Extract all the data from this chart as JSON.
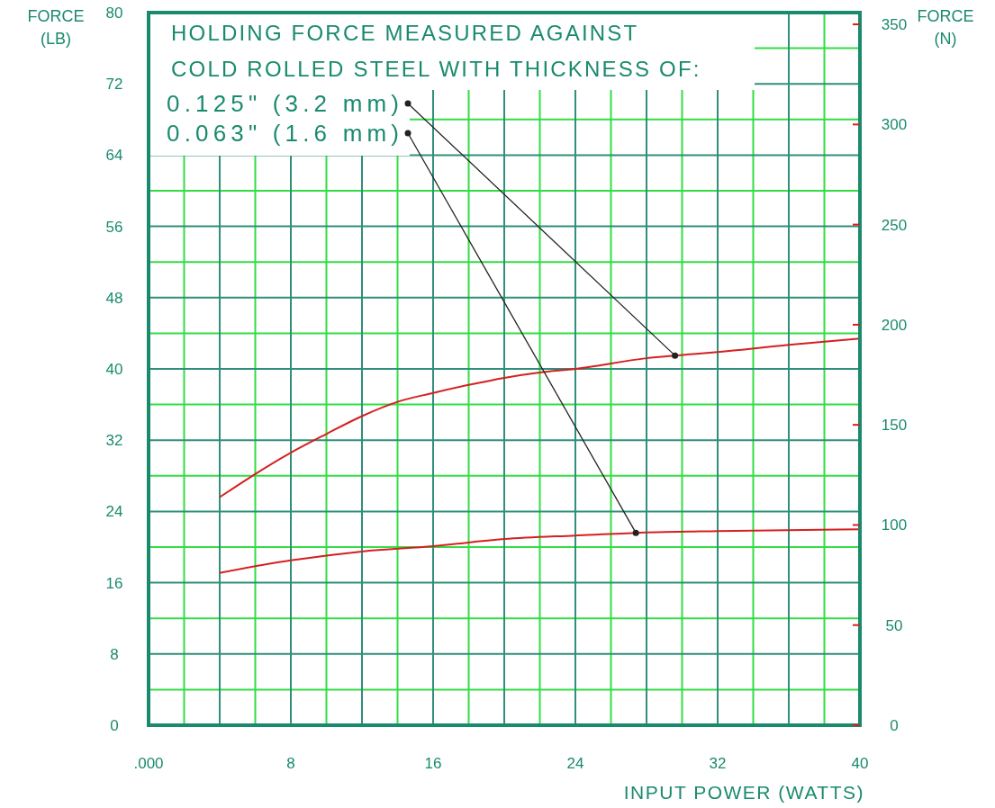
{
  "chart_data": {
    "type": "line",
    "title": "HOLDING FORCE MEASURED AGAINST",
    "subtitle": "COLD ROLLED STEEL WITH THICKNESS OF:",
    "xlabel": "INPUT POWER (WATTS)",
    "ylabel": "FORCE (LB)",
    "y2label": "FORCE (N)",
    "xlim": [
      0,
      40
    ],
    "xticks": [
      {
        "value": 0,
        "label": ".000"
      },
      {
        "value": 2,
        "label": null
      },
      {
        "value": 4,
        "label": null
      },
      {
        "value": 6,
        "label": null
      },
      8,
      {
        "value": 10,
        "label": null
      },
      {
        "value": 12,
        "label": null
      },
      {
        "value": 14,
        "label": null
      },
      16,
      {
        "value": 18,
        "label": null
      },
      {
        "value": 20,
        "label": null
      },
      {
        "value": 22,
        "label": null
      },
      24,
      {
        "value": 26,
        "label": null
      },
      {
        "value": 28,
        "label": null
      },
      {
        "value": 30,
        "label": null
      },
      32,
      {
        "value": 34,
        "label": null
      },
      {
        "value": 36,
        "label": null
      },
      {
        "value": 38,
        "label": null
      },
      40
    ],
    "ylim": [
      0,
      80
    ],
    "yticks": [
      0,
      {
        "value": 4,
        "label": null
      },
      8,
      {
        "value": 12,
        "label": null
      },
      16,
      {
        "value": 20,
        "label": null
      },
      24,
      {
        "value": 28,
        "label": null
      },
      32,
      {
        "value": 36,
        "label": null
      },
      40,
      {
        "value": 44,
        "label": null
      },
      48,
      {
        "value": 52,
        "label": null
      },
      56,
      {
        "value": 60,
        "label": null
      },
      64,
      {
        "value": 68,
        "label": null
      },
      72,
      {
        "value": 76,
        "label": null
      },
      80
    ],
    "y2lim": [
      0,
      355.86
    ],
    "y2ticks": [
      0,
      50,
      100,
      150,
      200,
      250,
      300,
      350
    ],
    "grid": true,
    "series": [
      {
        "color": "#d42020",
        "x": [
          4,
          6,
          8,
          10,
          12,
          14,
          16,
          18,
          20,
          22,
          24,
          28,
          29.6,
          32,
          36,
          40
        ],
        "values": [
          25.6,
          28.2,
          30.6,
          32.7,
          34.7,
          36.3,
          37.3,
          38.2,
          39.0,
          39.6,
          40.0,
          41.2,
          41.5,
          41.9,
          42.7,
          43.4
        ]
      },
      {
        "color": "#d42020",
        "x": [
          4,
          8,
          12,
          16,
          20,
          24,
          27.4,
          32,
          40
        ],
        "values": [
          17.1,
          18.5,
          19.5,
          20.1,
          20.9,
          21.3,
          21.6,
          21.8,
          22.0
        ]
      }
    ],
    "annotations": [
      {
        "text": "0.125\" (3.2 mm)",
        "x": 29.6,
        "y": 41.5
      },
      {
        "text": "0.063\" (1.6 mm)",
        "x": 27.4,
        "y": 21.6
      }
    ]
  }
}
